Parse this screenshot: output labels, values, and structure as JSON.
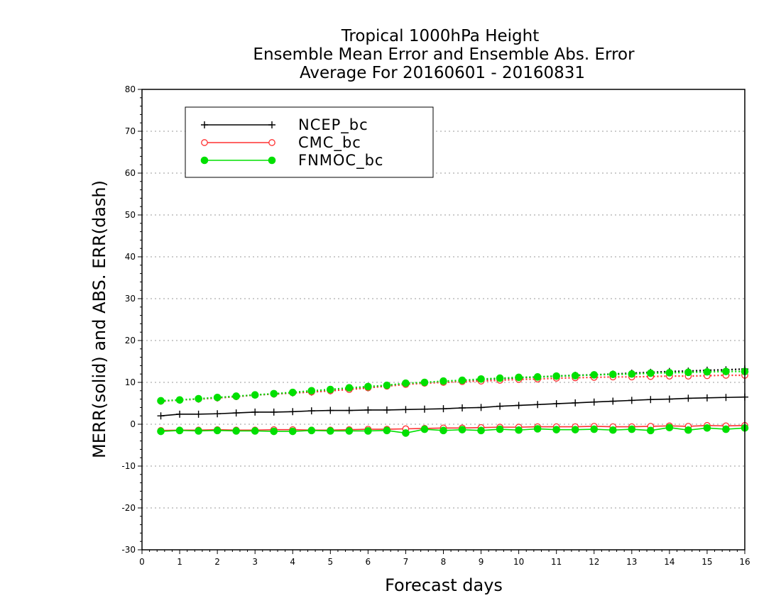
{
  "chart_data": {
    "type": "line",
    "title_lines": [
      "Tropical 1000hPa Height",
      "Ensemble Mean Error and Ensemble Abs. Error",
      "Average For 20160601 - 20160831"
    ],
    "xlabel": "Forecast days",
    "ylabel": "MERR(solid) and ABS. ERR(dash)",
    "xlim": [
      0,
      16
    ],
    "ylim": [
      -30,
      80
    ],
    "x_ticks": [
      0,
      1,
      2,
      3,
      4,
      5,
      6,
      7,
      8,
      9,
      10,
      11,
      12,
      13,
      14,
      15,
      16
    ],
    "y_ticks": [
      -30,
      -20,
      -10,
      0,
      10,
      20,
      30,
      40,
      50,
      60,
      70,
      80
    ],
    "y_tick_labels": [
      "-30",
      "-20",
      "-10",
      "0",
      "10",
      "20",
      "30",
      "40",
      "50",
      "60",
      "70",
      "80"
    ],
    "grid": "horizontal dotted",
    "legend_position": "top-left",
    "x": [
      0.5,
      1.0,
      1.5,
      2.0,
      2.5,
      3.0,
      3.5,
      4.0,
      4.5,
      5.0,
      5.5,
      6.0,
      6.5,
      7.0,
      7.5,
      8.0,
      8.5,
      9.0,
      9.5,
      10.0,
      10.5,
      11.0,
      11.5,
      12.0,
      12.5,
      13.0,
      13.5,
      14.0,
      14.5,
      15.0,
      15.5,
      16.0
    ],
    "series": [
      {
        "name": "NCEP_bc",
        "color": "#000000",
        "marker": "plus",
        "merr": [
          2.0,
          2.4,
          2.4,
          2.5,
          2.7,
          2.9,
          2.9,
          3.0,
          3.2,
          3.3,
          3.3,
          3.4,
          3.4,
          3.5,
          3.6,
          3.7,
          3.9,
          4.0,
          4.3,
          4.5,
          4.7,
          4.9,
          5.1,
          5.3,
          5.5,
          5.7,
          5.9,
          6.0,
          6.2,
          6.3,
          6.4,
          6.5
        ],
        "abs_err": [
          5.5,
          5.8,
          6.0,
          6.3,
          6.6,
          7.0,
          7.2,
          7.5,
          7.7,
          8.0,
          8.4,
          8.7,
          9.2,
          9.7,
          9.9,
          10.2,
          10.4,
          10.7,
          10.9,
          11.1,
          11.3,
          11.5,
          11.7,
          11.8,
          12.0,
          12.2,
          12.4,
          12.6,
          12.7,
          12.9,
          13.0,
          13.2
        ]
      },
      {
        "name": "CMC_bc",
        "color": "#ff3030",
        "marker": "open-circle",
        "merr": [
          -1.5,
          -1.4,
          -1.4,
          -1.3,
          -1.4,
          -1.4,
          -1.3,
          -1.3,
          -1.4,
          -1.4,
          -1.3,
          -1.2,
          -1.2,
          -1.1,
          -1.0,
          -0.9,
          -0.9,
          -0.8,
          -0.7,
          -0.7,
          -0.6,
          -0.6,
          -0.6,
          -0.5,
          -0.6,
          -0.6,
          -0.5,
          -0.4,
          -0.5,
          -0.3,
          -0.4,
          -0.3
        ],
        "abs_err": [
          5.5,
          5.8,
          6.0,
          6.3,
          6.6,
          7.0,
          7.2,
          7.5,
          7.7,
          8.0,
          8.3,
          8.7,
          9.1,
          9.5,
          9.8,
          10.0,
          10.2,
          10.3,
          10.5,
          10.7,
          10.8,
          11.0,
          11.1,
          11.2,
          11.3,
          11.3,
          11.4,
          11.5,
          11.5,
          11.6,
          11.7,
          11.7
        ]
      },
      {
        "name": "FNMOC_bc",
        "color": "#00e000",
        "marker": "filled-circle",
        "merr": [
          -1.7,
          -1.5,
          -1.6,
          -1.5,
          -1.6,
          -1.6,
          -1.7,
          -1.7,
          -1.5,
          -1.6,
          -1.6,
          -1.6,
          -1.5,
          -2.1,
          -1.2,
          -1.5,
          -1.3,
          -1.5,
          -1.2,
          -1.4,
          -1.1,
          -1.3,
          -1.3,
          -1.2,
          -1.4,
          -1.2,
          -1.5,
          -0.8,
          -1.4,
          -0.9,
          -1.2,
          -0.9
        ],
        "abs_err": [
          5.6,
          5.8,
          6.1,
          6.4,
          6.7,
          7.0,
          7.3,
          7.6,
          8.0,
          8.3,
          8.7,
          9.0,
          9.3,
          9.8,
          10.0,
          10.3,
          10.5,
          10.8,
          11.0,
          11.2,
          11.3,
          11.5,
          11.6,
          11.8,
          11.9,
          12.0,
          12.2,
          12.3,
          12.4,
          12.5,
          12.6,
          12.6
        ]
      }
    ]
  }
}
